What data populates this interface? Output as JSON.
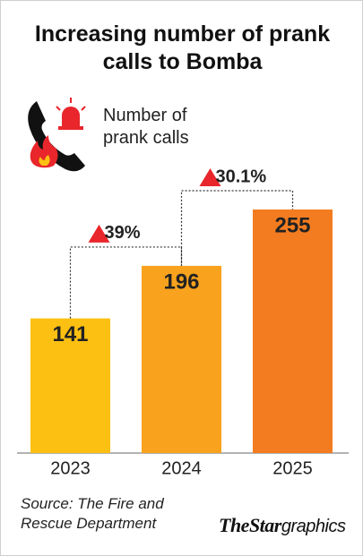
{
  "chart_data": {
    "type": "bar",
    "title": "Increasing number of prank calls to Bomba",
    "legend_label": "Number of prank calls",
    "categories": [
      "2023",
      "2024",
      "2025"
    ],
    "values": [
      141,
      196,
      255
    ],
    "colors": [
      "#fcc012",
      "#f8a21d",
      "#f47c20"
    ],
    "annotations": [
      "39%",
      "30.1%"
    ],
    "source": "Source: The Fire and Rescue Department",
    "credit": {
      "brand": "TheStar",
      "suffix": "graphics"
    }
  }
}
